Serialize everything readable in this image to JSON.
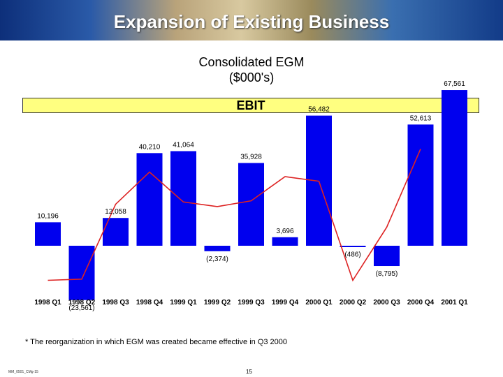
{
  "header": {
    "title": "Expansion of Existing Business"
  },
  "chart_data": {
    "type": "bar",
    "title": "Consolidated EGM",
    "subtitle": "($000's)",
    "band_label": "EBIT",
    "categories": [
      "1998 Q1",
      "1998 Q2",
      "1998 Q3",
      "1998 Q4",
      "1999 Q1",
      "1999 Q2",
      "1999 Q3",
      "1999 Q4",
      "2000 Q1",
      "2000 Q2",
      "2000 Q3",
      "2000 Q4",
      "2001 Q1"
    ],
    "series": [
      {
        "name": "EBIT",
        "values": [
          10196,
          -23561,
          12058,
          40210,
          41064,
          -2374,
          35928,
          3696,
          56482,
          -486,
          -8795,
          52613,
          67561
        ]
      }
    ],
    "value_labels": [
      "10,196",
      "(23,561)",
      "12,058",
      "40,210",
      "41,064",
      "(2,374)",
      "35,928",
      "3,696",
      "56,482",
      "(486)",
      "(8,795)",
      "52,613",
      "67,561"
    ],
    "trend_line": [
      -15000,
      -14500,
      18000,
      32000,
      19000,
      17000,
      19500,
      30000,
      28000,
      -15000,
      8000,
      42000
    ],
    "colors": {
      "bar": "#0000ee",
      "line": "#dd2222",
      "band": "#ffff80"
    },
    "ylim": [
      -30000,
      75000
    ]
  },
  "footnote": "* The reorganization in which EGM was created became effective in Q3 2000",
  "footer": {
    "doc_code": "MM_0501_CMg-15",
    "page": "15"
  }
}
